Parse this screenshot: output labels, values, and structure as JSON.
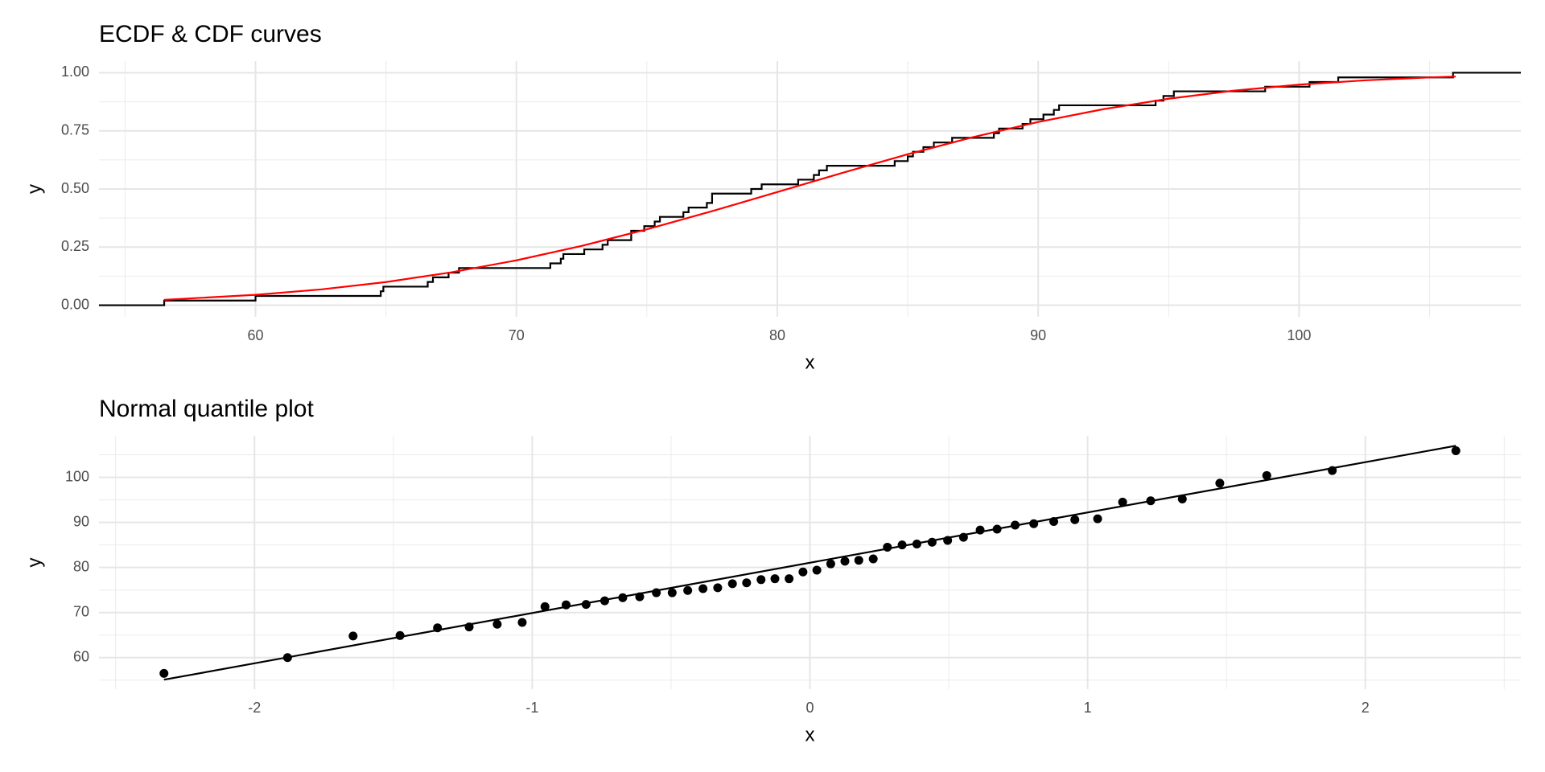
{
  "chart_data": [
    {
      "type": "line",
      "title": "ECDF & CDF curves",
      "x_label": "x",
      "y_label": "y",
      "xlim": [
        54,
        108.5
      ],
      "ylim": [
        -0.05,
        1.05
      ],
      "xticks": [
        60,
        70,
        80,
        90,
        100
      ],
      "minor_xticks": [
        55,
        65,
        75,
        85,
        95,
        105
      ],
      "yticks": [
        {
          "value": 0,
          "label": "0.00"
        },
        {
          "value": 0.25,
          "label": "0.25"
        },
        {
          "value": 0.5,
          "label": "0.50"
        },
        {
          "value": 0.75,
          "label": "0.75"
        },
        {
          "value": 1,
          "label": "1.00"
        }
      ],
      "minor_yticks": [
        0.125,
        0.375,
        0.625,
        0.875
      ],
      "grid": true,
      "series": [
        {
          "mode": "step",
          "color": "#000000",
          "x": [
            56.5,
            60.0,
            64.8,
            64.9,
            66.6,
            66.8,
            67.4,
            67.8,
            71.3,
            71.7,
            71.8,
            72.6,
            73.3,
            73.5,
            74.4,
            74.4,
            74.9,
            75.3,
            75.5,
            76.4,
            76.6,
            77.3,
            77.5,
            77.5,
            79.0,
            79.4,
            80.8,
            81.4,
            81.6,
            81.9,
            84.5,
            85.0,
            85.2,
            85.6,
            86.0,
            86.7,
            88.3,
            88.5,
            89.4,
            89.7,
            90.2,
            90.6,
            90.8,
            94.5,
            94.8,
            95.2,
            98.7,
            100.4,
            101.5,
            105.9
          ],
          "y": [
            0.02,
            0.04,
            0.06,
            0.08,
            0.1,
            0.12,
            0.14,
            0.16,
            0.18,
            0.2,
            0.22,
            0.24,
            0.26,
            0.28,
            0.3,
            0.32,
            0.34,
            0.36,
            0.38,
            0.4,
            0.42,
            0.44,
            0.46,
            0.48,
            0.5,
            0.52,
            0.54,
            0.56,
            0.58,
            0.6,
            0.62,
            0.64,
            0.66,
            0.68,
            0.7,
            0.72,
            0.74,
            0.76,
            0.78,
            0.8,
            0.82,
            0.84,
            0.86,
            0.88,
            0.9,
            0.92,
            0.94,
            0.96,
            0.98,
            1.0
          ]
        },
        {
          "mode": "lines",
          "color": "#ff0000",
          "x": [
            56.5,
            60,
            62.5,
            65,
            67.5,
            70,
            72.5,
            75,
            77.5,
            80,
            82.5,
            85,
            87.5,
            90,
            92.5,
            95,
            97.5,
            100,
            102.5,
            105,
            106
          ],
          "y": [
            0.0232,
            0.0446,
            0.0679,
            0.0997,
            0.1412,
            0.193,
            0.2552,
            0.3264,
            0.4045,
            0.4867,
            0.5695,
            0.6492,
            0.723,
            0.7881,
            0.8433,
            0.8882,
            0.9229,
            0.9488,
            0.9672,
            0.9798,
            0.9836
          ]
        }
      ]
    },
    {
      "type": "scatter",
      "title": "Normal quantile plot",
      "x_label": "x",
      "y_label": "y",
      "xlim": [
        -2.56,
        2.56
      ],
      "ylim": [
        53,
        109.2
      ],
      "xticks": [
        -2,
        -1,
        0,
        1,
        2
      ],
      "minor_xticks": [
        -2.5,
        -1.5,
        -0.5,
        0.5,
        1.5,
        2.5
      ],
      "yticks": [
        60,
        70,
        80,
        90,
        100
      ],
      "minor_yticks": [
        55,
        65,
        75,
        85,
        95,
        105
      ],
      "grid": true,
      "series": [
        {
          "mode": "markers",
          "color": "#000000",
          "x": [
            -2.326,
            -1.881,
            -1.645,
            -1.476,
            -1.341,
            -1.227,
            -1.126,
            -1.036,
            -0.954,
            -0.878,
            -0.806,
            -0.739,
            -0.674,
            -0.613,
            -0.553,
            -0.496,
            -0.44,
            -0.385,
            -0.332,
            -0.279,
            -0.228,
            -0.176,
            -0.126,
            -0.075,
            -0.025,
            0.025,
            0.075,
            0.126,
            0.176,
            0.228,
            0.279,
            0.332,
            0.385,
            0.44,
            0.496,
            0.553,
            0.613,
            0.674,
            0.739,
            0.806,
            0.878,
            0.954,
            1.036,
            1.126,
            1.227,
            1.341,
            1.476,
            1.645,
            1.881,
            2.326
          ],
          "y": [
            56.5,
            60.0,
            64.8,
            64.9,
            66.6,
            66.8,
            67.4,
            67.8,
            71.3,
            71.7,
            71.8,
            72.6,
            73.3,
            73.5,
            74.4,
            74.4,
            74.9,
            75.3,
            75.5,
            76.4,
            76.6,
            77.3,
            77.5,
            77.5,
            79.0,
            79.4,
            80.8,
            81.4,
            81.6,
            81.9,
            84.5,
            85.0,
            85.2,
            85.6,
            86.0,
            86.7,
            88.3,
            88.5,
            89.4,
            89.7,
            90.2,
            90.6,
            90.8,
            94.5,
            94.8,
            95.2,
            98.7,
            100.4,
            101.5,
            105.9
          ]
        },
        {
          "mode": "lines",
          "color": "#000000",
          "x": [
            -2.326,
            2.326
          ],
          "y": [
            55.1,
            107.0
          ]
        }
      ]
    }
  ]
}
